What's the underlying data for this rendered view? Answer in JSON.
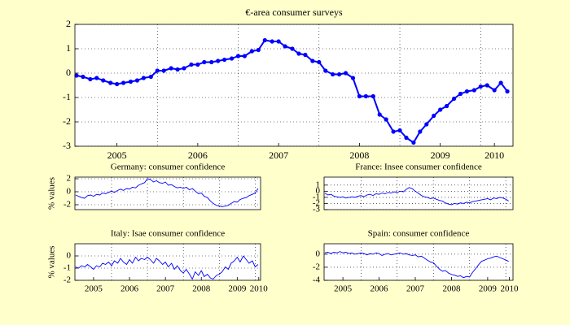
{
  "chart_data": [
    {
      "type": "line",
      "title": "€-area consumer surveys",
      "color": "#0000ff",
      "markers": true,
      "grid": true,
      "xlim": [
        2004.98,
        2010.4
      ],
      "ylim": [
        -3,
        2
      ],
      "yticks": [
        -3,
        -2,
        -1,
        0,
        1,
        2
      ],
      "xticks": [
        {
          "value": 2005.5,
          "label": "2005"
        },
        {
          "value": 2006.5,
          "label": "2006"
        },
        {
          "value": 2007.5,
          "label": "2007"
        },
        {
          "value": 2008.5,
          "label": "2008"
        },
        {
          "value": 2009.5,
          "label": "2009"
        },
        {
          "value": 2010.17,
          "label": "2010"
        }
      ],
      "xgrid": [
        2006,
        2007,
        2008,
        2009,
        2010
      ],
      "x": [
        2005,
        2005.08,
        2005.17,
        2005.25,
        2005.33,
        2005.42,
        2005.5,
        2005.58,
        2005.67,
        2005.75,
        2005.83,
        2005.92,
        2006,
        2006.08,
        2006.17,
        2006.25,
        2006.33,
        2006.42,
        2006.5,
        2006.58,
        2006.67,
        2006.75,
        2006.83,
        2006.92,
        2007,
        2007.08,
        2007.17,
        2007.25,
        2007.33,
        2007.42,
        2007.5,
        2007.58,
        2007.67,
        2007.75,
        2007.83,
        2007.92,
        2008,
        2008.08,
        2008.17,
        2008.25,
        2008.33,
        2008.42,
        2008.5,
        2008.58,
        2008.67,
        2008.75,
        2008.83,
        2008.92,
        2009,
        2009.08,
        2009.17,
        2009.25,
        2009.33,
        2009.42,
        2009.5,
        2009.58,
        2009.67,
        2009.75,
        2009.83,
        2009.92,
        2010,
        2010.08,
        2010.17,
        2010.25,
        2010.33
      ],
      "values": [
        -0.1,
        -0.15,
        -0.25,
        -0.2,
        -0.3,
        -0.4,
        -0.45,
        -0.4,
        -0.35,
        -0.3,
        -0.2,
        -0.15,
        0.1,
        0.1,
        0.2,
        0.15,
        0.2,
        0.35,
        0.35,
        0.45,
        0.45,
        0.5,
        0.55,
        0.6,
        0.7,
        0.7,
        0.9,
        0.95,
        1.35,
        1.3,
        1.3,
        1.1,
        1.0,
        0.8,
        0.75,
        0.5,
        0.45,
        0.1,
        -0.05,
        -0.05,
        0.0,
        -0.2,
        -0.95,
        -0.95,
        -0.95,
        -1.7,
        -1.9,
        -2.4,
        -2.35,
        -2.65,
        -2.85,
        -2.4,
        -2.1,
        -1.75,
        -1.5,
        -1.35,
        -1.05,
        -0.85,
        -0.75,
        -0.7,
        -0.55,
        -0.5,
        -0.7,
        -0.4,
        -0.75
      ]
    },
    {
      "type": "line",
      "title": "Germany: consumer confidence",
      "ylabel": "% values",
      "color": "#0000ff",
      "markers": false,
      "grid": true,
      "xlim": [
        2004.98,
        2010.15
      ],
      "ylim": [
        -2.75,
        2.25
      ],
      "yticks": [
        -2,
        0,
        2
      ],
      "xgrid": [
        2006,
        2007,
        2008,
        2009,
        2010
      ],
      "x": [
        2005,
        2005.08,
        2005.17,
        2005.25,
        2005.33,
        2005.42,
        2005.5,
        2005.58,
        2005.67,
        2005.75,
        2005.83,
        2005.92,
        2006,
        2006.08,
        2006.17,
        2006.25,
        2006.33,
        2006.42,
        2006.5,
        2006.58,
        2006.67,
        2006.75,
        2006.83,
        2006.92,
        2007,
        2007.08,
        2007.17,
        2007.25,
        2007.33,
        2007.42,
        2007.5,
        2007.58,
        2007.67,
        2007.75,
        2007.83,
        2007.92,
        2008,
        2008.08,
        2008.17,
        2008.25,
        2008.33,
        2008.42,
        2008.5,
        2008.58,
        2008.67,
        2008.75,
        2008.83,
        2008.92,
        2009,
        2009.08,
        2009.17,
        2009.25,
        2009.33,
        2009.42,
        2009.5,
        2009.58,
        2009.67,
        2009.75,
        2009.83,
        2009.92,
        2010,
        2010.08
      ],
      "values": [
        -0.5,
        -0.7,
        -0.9,
        -1.0,
        -0.6,
        -0.5,
        -0.7,
        -0.4,
        -0.5,
        -0.2,
        -0.3,
        -0.1,
        0.1,
        -0.1,
        0.2,
        0.4,
        0.2,
        0.5,
        0.4,
        0.7,
        0.6,
        1.0,
        1.2,
        1.4,
        2.0,
        1.9,
        1.5,
        1.7,
        1.4,
        1.3,
        1.5,
        1.0,
        1.1,
        0.8,
        0.6,
        0.7,
        0.5,
        0.7,
        0.3,
        0.5,
        0.1,
        -0.3,
        -0.2,
        -0.7,
        -0.9,
        -1.4,
        -1.8,
        -2.1,
        -2.2,
        -2.3,
        -2.2,
        -2.1,
        -1.8,
        -1.5,
        -1.6,
        -1.2,
        -1.0,
        -0.9,
        -0.6,
        -0.4,
        -0.2,
        0.5
      ]
    },
    {
      "type": "line",
      "title": "France: Insee consumer confidence",
      "color": "#0000ff",
      "markers": false,
      "grid": true,
      "xlim": [
        2004.98,
        2010.2
      ],
      "ylim": [
        -3,
        2.3
      ],
      "yticks": [
        -3,
        -2,
        -1,
        0,
        1
      ],
      "xgrid": [
        2006,
        2007,
        2008,
        2009,
        2010
      ],
      "x": [
        2005,
        2005.08,
        2005.17,
        2005.25,
        2005.33,
        2005.42,
        2005.5,
        2005.58,
        2005.67,
        2005.75,
        2005.83,
        2005.92,
        2006,
        2006.08,
        2006.17,
        2006.25,
        2006.33,
        2006.42,
        2006.5,
        2006.58,
        2006.67,
        2006.75,
        2006.83,
        2006.92,
        2007,
        2007.08,
        2007.17,
        2007.25,
        2007.33,
        2007.42,
        2007.5,
        2007.58,
        2007.67,
        2007.75,
        2007.83,
        2007.92,
        2008,
        2008.08,
        2008.17,
        2008.25,
        2008.33,
        2008.42,
        2008.5,
        2008.58,
        2008.67,
        2008.75,
        2008.83,
        2008.92,
        2009,
        2009.08,
        2009.17,
        2009.25,
        2009.33,
        2009.42,
        2009.5,
        2009.58,
        2009.67,
        2009.75,
        2009.83,
        2009.92,
        2010,
        2010.08
      ],
      "values": [
        -0.3,
        -0.6,
        -0.5,
        -0.8,
        -0.9,
        -1.0,
        -0.9,
        -1.1,
        -1.0,
        -0.9,
        -1.0,
        -0.8,
        -0.7,
        -0.9,
        -0.6,
        -0.5,
        -0.7,
        -0.4,
        -0.5,
        -0.3,
        -0.4,
        -0.2,
        -0.3,
        -0.1,
        -0.2,
        0.0,
        -0.1,
        0.3,
        0.6,
        0.4,
        0.0,
        -0.3,
        -0.7,
        -0.9,
        -1.0,
        -1.2,
        -1.1,
        -1.3,
        -1.5,
        -1.6,
        -1.9,
        -2.1,
        -2.2,
        -2.0,
        -2.1,
        -1.9,
        -2.0,
        -1.8,
        -1.9,
        -1.7,
        -1.6,
        -1.5,
        -1.4,
        -1.3,
        -1.2,
        -1.4,
        -1.1,
        -1.2,
        -1.0,
        -1.1,
        -1.3,
        -1.6
      ]
    },
    {
      "type": "line",
      "title": "Italy: Isae consumer confidence",
      "ylabel": "% values",
      "color": "#0000ff",
      "markers": false,
      "grid": true,
      "xlim": [
        2004.98,
        2010.15
      ],
      "ylim": [
        -2,
        1
      ],
      "yticks": [
        -2,
        -1,
        0
      ],
      "xticks": [
        {
          "value": 2005.5,
          "label": "2005"
        },
        {
          "value": 2006.5,
          "label": "2006"
        },
        {
          "value": 2007.5,
          "label": "2007"
        },
        {
          "value": 2008.5,
          "label": "2008"
        },
        {
          "value": 2009.5,
          "label": "2009"
        },
        {
          "value": 2010.1,
          "label": "2010"
        }
      ],
      "xgrid": [
        2006,
        2007,
        2008,
        2009,
        2010
      ],
      "x": [
        2005,
        2005.08,
        2005.17,
        2005.25,
        2005.33,
        2005.42,
        2005.5,
        2005.58,
        2005.67,
        2005.75,
        2005.83,
        2005.92,
        2006,
        2006.08,
        2006.17,
        2006.25,
        2006.33,
        2006.42,
        2006.5,
        2006.58,
        2006.67,
        2006.75,
        2006.83,
        2006.92,
        2007,
        2007.08,
        2007.17,
        2007.25,
        2007.33,
        2007.42,
        2007.5,
        2007.58,
        2007.67,
        2007.75,
        2007.83,
        2007.92,
        2008,
        2008.08,
        2008.17,
        2008.25,
        2008.33,
        2008.42,
        2008.5,
        2008.58,
        2008.67,
        2008.75,
        2008.83,
        2008.92,
        2009,
        2009.08,
        2009.17,
        2009.25,
        2009.33,
        2009.42,
        2009.5,
        2009.58,
        2009.67,
        2009.75,
        2009.83,
        2009.92,
        2010,
        2010.08
      ],
      "values": [
        -0.9,
        -1.0,
        -0.8,
        -0.9,
        -0.7,
        -0.9,
        -1.1,
        -0.8,
        -0.9,
        -0.6,
        -0.7,
        -0.5,
        -0.8,
        -0.4,
        -0.6,
        -0.2,
        -0.5,
        -0.7,
        -0.3,
        -0.6,
        -0.1,
        -0.4,
        -0.2,
        -0.3,
        -0.1,
        -0.3,
        -0.6,
        -0.2,
        -0.4,
        -0.7,
        -0.5,
        -0.9,
        -0.6,
        -1.1,
        -0.8,
        -1.2,
        -1.4,
        -1.1,
        -1.5,
        -1.9,
        -1.3,
        -1.6,
        -1.2,
        -1.7,
        -1.5,
        -1.8,
        -1.9,
        -1.6,
        -1.5,
        -1.3,
        -0.9,
        -1.1,
        -0.6,
        -0.4,
        -0.1,
        -0.5,
        0.0,
        -0.3,
        -0.6,
        -0.4,
        -0.9,
        -0.7
      ]
    },
    {
      "type": "line",
      "title": "Spain: consumer confidence",
      "color": "#0000ff",
      "markers": false,
      "grid": true,
      "xlim": [
        2004.98,
        2010.2
      ],
      "ylim": [
        -4,
        1.6
      ],
      "yticks": [
        -4,
        -2,
        0
      ],
      "xticks": [
        {
          "value": 2005.5,
          "label": "2005"
        },
        {
          "value": 2006.5,
          "label": "2006"
        },
        {
          "value": 2007.5,
          "label": "2007"
        },
        {
          "value": 2008.5,
          "label": "2008"
        },
        {
          "value": 2009.5,
          "label": "2009"
        },
        {
          "value": 2010.1,
          "label": "2010"
        }
      ],
      "xgrid": [
        2006,
        2007,
        2008,
        2009,
        2010
      ],
      "x": [
        2005,
        2005.08,
        2005.17,
        2005.25,
        2005.33,
        2005.42,
        2005.5,
        2005.58,
        2005.67,
        2005.75,
        2005.83,
        2005.92,
        2006,
        2006.08,
        2006.17,
        2006.25,
        2006.33,
        2006.42,
        2006.5,
        2006.58,
        2006.67,
        2006.75,
        2006.83,
        2006.92,
        2007,
        2007.08,
        2007.17,
        2007.25,
        2007.33,
        2007.42,
        2007.5,
        2007.58,
        2007.67,
        2007.75,
        2007.83,
        2007.92,
        2008,
        2008.08,
        2008.17,
        2008.25,
        2008.33,
        2008.42,
        2008.5,
        2008.58,
        2008.67,
        2008.75,
        2008.83,
        2008.92,
        2009,
        2009.08,
        2009.17,
        2009.25,
        2009.33,
        2009.42,
        2009.5,
        2009.58,
        2009.67,
        2009.75,
        2009.83,
        2009.92,
        2010,
        2010.08
      ],
      "values": [
        0.2,
        0.3,
        0.1,
        0.3,
        0.2,
        0.4,
        0.2,
        0.3,
        0.1,
        0.2,
        0.0,
        0.1,
        0.2,
        0.1,
        -0.1,
        0.1,
        0.0,
        0.2,
        0.1,
        -0.2,
        0.0,
        0.1,
        -0.1,
        0.0,
        0.1,
        0.2,
        0.0,
        0.1,
        -0.1,
        -0.2,
        -0.1,
        -0.4,
        -0.3,
        -0.6,
        -0.9,
        -1.2,
        -1.3,
        -1.8,
        -2.3,
        -2.6,
        -2.5,
        -2.9,
        -3.1,
        -3.2,
        -3.4,
        -3.3,
        -3.6,
        -3.4,
        -3.5,
        -2.8,
        -2.2,
        -1.6,
        -1.1,
        -0.9,
        -0.7,
        -0.6,
        -0.4,
        -0.3,
        -0.5,
        -0.7,
        -0.9,
        -1.1
      ]
    }
  ]
}
